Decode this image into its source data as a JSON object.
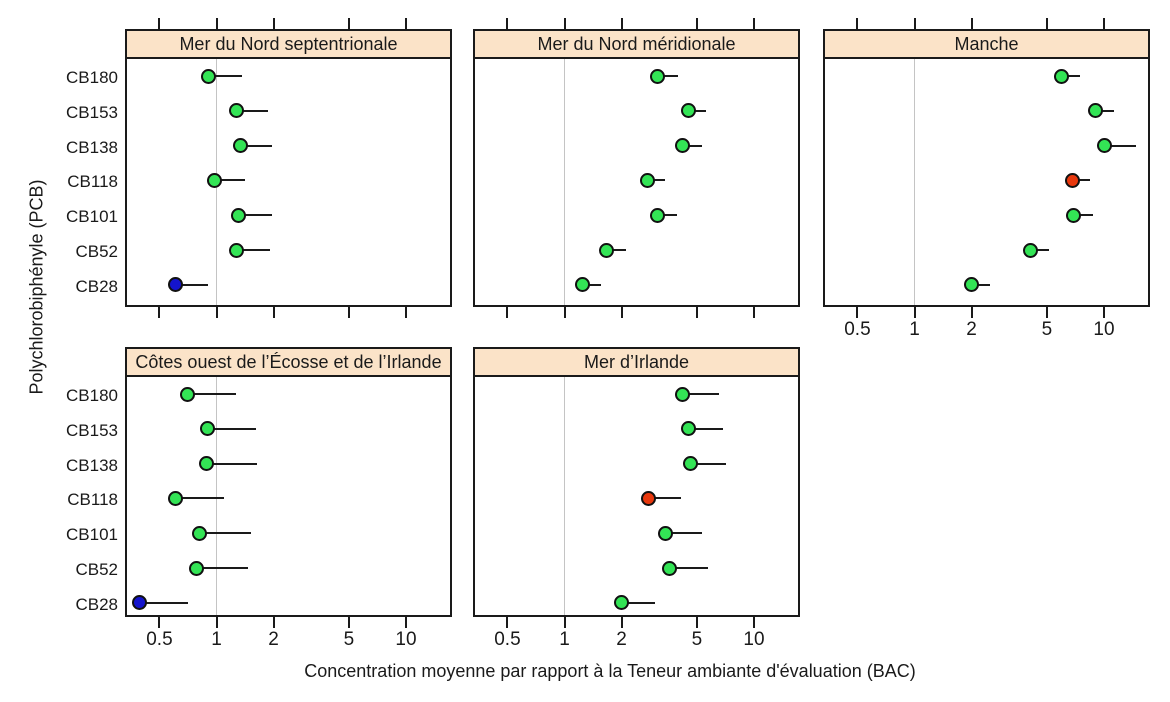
{
  "figure": {
    "xlabel": "Concentration moyenne par rapport à la Teneur ambiante d'évaluation (BAC)",
    "ylabel": "Polychlorobiphényle (PCB)"
  },
  "chart_data": {
    "type": "scatter",
    "subtype": "lattice-dotplot-with-upper-error-bars",
    "x_scale": "log",
    "x_range": [
      0.33,
      17.5
    ],
    "reference_line_x": 1,
    "grid": "reference-line-only",
    "legend": "none",
    "x_ticks": [
      {
        "value": 0.5,
        "label": "0.5"
      },
      {
        "value": 1,
        "label": "1"
      },
      {
        "value": 2,
        "label": "2"
      },
      {
        "value": 5,
        "label": "5"
      },
      {
        "value": 10,
        "label": "10"
      }
    ],
    "categories": [
      "CB180",
      "CB153",
      "CB138",
      "CB118",
      "CB101",
      "CB52",
      "CB28"
    ],
    "colors": {
      "green": "#33E455",
      "red": "#E8380D",
      "blue": "#1414CC",
      "header_fill": "#FBE3C8",
      "border": "#1a1a1a",
      "reference_line": "#c4c4c4"
    },
    "panels": [
      {
        "title": "Mer du Nord septentrionale",
        "row": 0,
        "col": 0,
        "top_ticks": true,
        "x_labels": false,
        "points": [
          {
            "pcb": "CB180",
            "value": 0.91,
            "upper": 1.36,
            "status": "green"
          },
          {
            "pcb": "CB153",
            "value": 1.28,
            "upper": 1.88,
            "status": "green"
          },
          {
            "pcb": "CB138",
            "value": 1.34,
            "upper": 1.96,
            "status": "green"
          },
          {
            "pcb": "CB118",
            "value": 0.98,
            "upper": 1.41,
            "status": "green"
          },
          {
            "pcb": "CB101",
            "value": 1.3,
            "upper": 1.97,
            "status": "green"
          },
          {
            "pcb": "CB52",
            "value": 1.28,
            "upper": 1.92,
            "status": "green"
          },
          {
            "pcb": "CB28",
            "value": 0.61,
            "upper": 0.9,
            "status": "blue"
          }
        ]
      },
      {
        "title": "Mer du Nord méridionale",
        "row": 0,
        "col": 1,
        "top_ticks": true,
        "x_labels": false,
        "points": [
          {
            "pcb": "CB180",
            "value": 3.1,
            "upper": 3.95,
            "status": "green"
          },
          {
            "pcb": "CB153",
            "value": 4.5,
            "upper": 5.6,
            "status": "green"
          },
          {
            "pcb": "CB138",
            "value": 4.2,
            "upper": 5.3,
            "status": "green"
          },
          {
            "pcb": "CB118",
            "value": 2.75,
            "upper": 3.4,
            "status": "green"
          },
          {
            "pcb": "CB101",
            "value": 3.1,
            "upper": 3.9,
            "status": "green"
          },
          {
            "pcb": "CB52",
            "value": 1.67,
            "upper": 2.1,
            "status": "green"
          },
          {
            "pcb": "CB28",
            "value": 1.24,
            "upper": 1.55,
            "status": "green"
          }
        ]
      },
      {
        "title": "Manche",
        "row": 0,
        "col": 2,
        "top_ticks": true,
        "x_labels": true,
        "points": [
          {
            "pcb": "CB180",
            "value": 6.0,
            "upper": 7.5,
            "status": "green"
          },
          {
            "pcb": "CB153",
            "value": 9.0,
            "upper": 11.3,
            "status": "green"
          },
          {
            "pcb": "CB138",
            "value": 10.0,
            "upper": 14.7,
            "status": "green"
          },
          {
            "pcb": "CB118",
            "value": 6.8,
            "upper": 8.4,
            "status": "red"
          },
          {
            "pcb": "CB101",
            "value": 6.9,
            "upper": 8.7,
            "status": "green"
          },
          {
            "pcb": "CB52",
            "value": 4.1,
            "upper": 5.1,
            "status": "green"
          },
          {
            "pcb": "CB28",
            "value": 2.0,
            "upper": 2.5,
            "status": "green"
          }
        ]
      },
      {
        "title": "Côtes ouest de l’Écosse et de l’Irlande",
        "row": 1,
        "col": 0,
        "top_ticks": false,
        "x_labels": true,
        "points": [
          {
            "pcb": "CB180",
            "value": 0.7,
            "upper": 1.26,
            "status": "green"
          },
          {
            "pcb": "CB153",
            "value": 0.9,
            "upper": 1.62,
            "status": "green"
          },
          {
            "pcb": "CB138",
            "value": 0.89,
            "upper": 1.64,
            "status": "green"
          },
          {
            "pcb": "CB118",
            "value": 0.61,
            "upper": 1.09,
            "status": "green"
          },
          {
            "pcb": "CB101",
            "value": 0.81,
            "upper": 1.52,
            "status": "green"
          },
          {
            "pcb": "CB52",
            "value": 0.78,
            "upper": 1.46,
            "status": "green"
          },
          {
            "pcb": "CB28",
            "value": 0.39,
            "upper": 0.71,
            "status": "blue"
          }
        ]
      },
      {
        "title": "Mer d’Irlande",
        "row": 1,
        "col": 1,
        "top_ticks": false,
        "x_labels": true,
        "points": [
          {
            "pcb": "CB180",
            "value": 4.2,
            "upper": 6.5,
            "status": "green"
          },
          {
            "pcb": "CB153",
            "value": 4.5,
            "upper": 6.9,
            "status": "green"
          },
          {
            "pcb": "CB138",
            "value": 4.6,
            "upper": 7.1,
            "status": "green"
          },
          {
            "pcb": "CB118",
            "value": 2.76,
            "upper": 4.1,
            "status": "red"
          },
          {
            "pcb": "CB101",
            "value": 3.4,
            "upper": 5.3,
            "status": "green"
          },
          {
            "pcb": "CB52",
            "value": 3.6,
            "upper": 5.7,
            "status": "green"
          },
          {
            "pcb": "CB28",
            "value": 2.0,
            "upper": 3.0,
            "status": "green"
          }
        ]
      }
    ]
  }
}
